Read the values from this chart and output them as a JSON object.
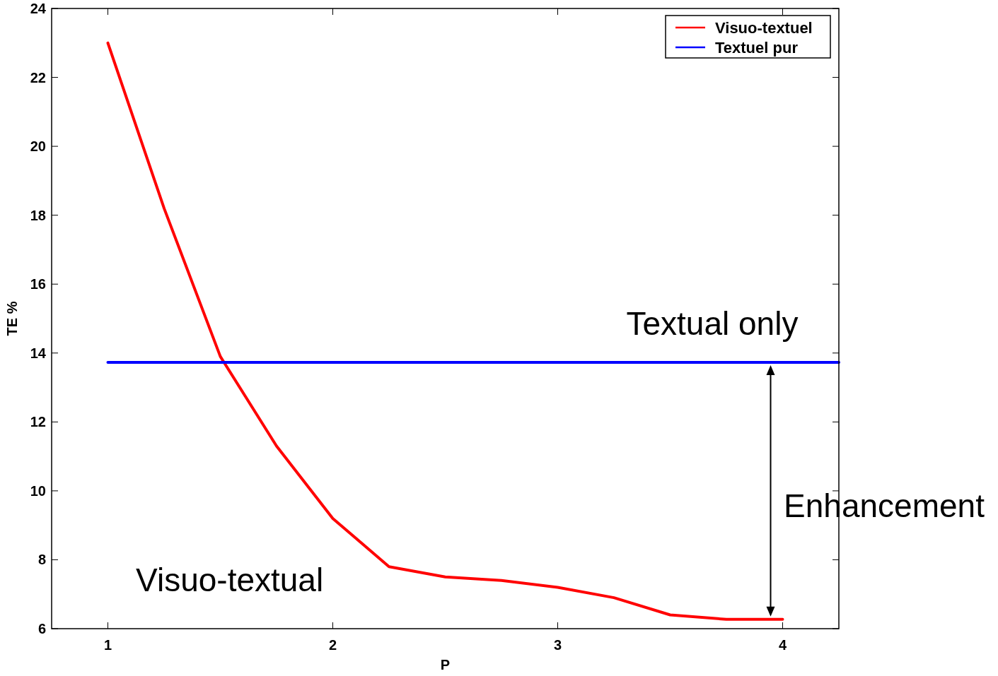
{
  "chart_data": {
    "type": "line",
    "xlabel": "P",
    "ylabel": "TE %",
    "xlim": [
      0.75,
      4.25
    ],
    "xticks": [
      1,
      2,
      3,
      4
    ],
    "ylim": [
      6,
      24
    ],
    "yticks": [
      6,
      8,
      10,
      12,
      14,
      16,
      18,
      20,
      22,
      24
    ],
    "series": [
      {
        "name": "Visuo-textuel",
        "color": "#ff0000",
        "x": [
          1,
          1.25,
          1.5,
          1.75,
          2,
          2.25,
          2.5,
          2.75,
          3,
          3.25,
          3.5,
          3.75,
          4
        ],
        "values": [
          23,
          18.2,
          13.9,
          11.3,
          9.2,
          7.8,
          7.5,
          7.4,
          7.2,
          6.9,
          6.4,
          6.27,
          6.27
        ]
      },
      {
        "name": "Textuel pur",
        "color": "#0000ff",
        "x": [
          1,
          4.25
        ],
        "values": [
          13.73,
          13.73
        ]
      }
    ],
    "legend": "top right",
    "grid": false,
    "marker": "none",
    "line_style": "solid",
    "annotations": [
      "Textual only",
      "Visuo-textual",
      "Enhancement"
    ]
  }
}
